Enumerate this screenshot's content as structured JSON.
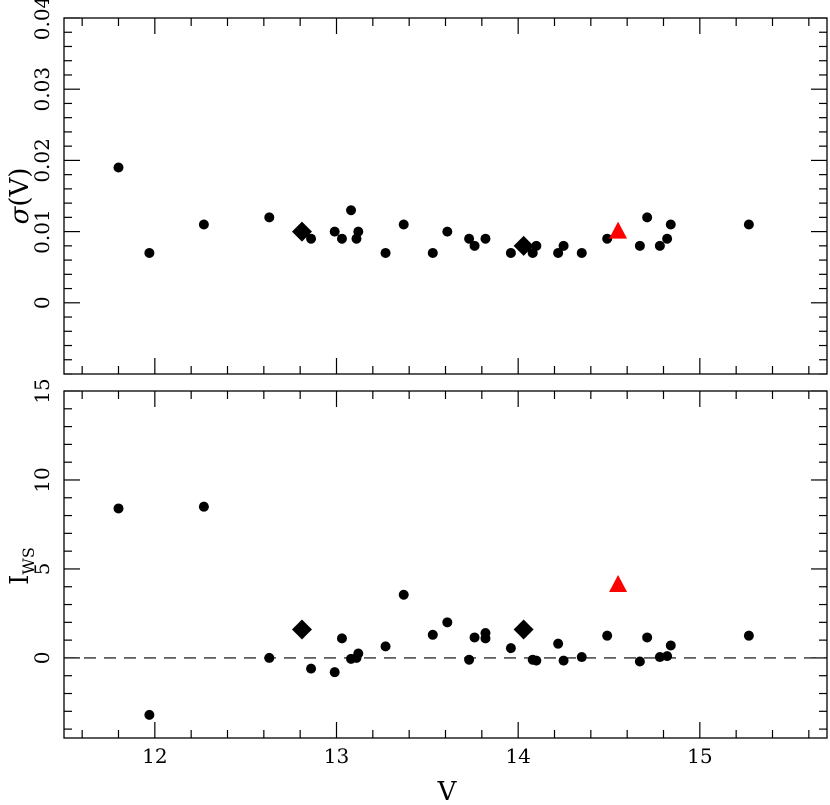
{
  "chart_data": [
    {
      "type": "scatter",
      "panel": "top",
      "xlabel": "",
      "ylabel": "σ(V)",
      "ylabel_symbol": "σ",
      "ylabel_rest": "(V)",
      "xlim": [
        11.5,
        15.7
      ],
      "ylim": [
        -0.01,
        0.04
      ],
      "xticks": [],
      "yticks": [
        0,
        0.01,
        0.02,
        0.03,
        0.04
      ],
      "ytick_labels": [
        "0",
        "0.01",
        "0.02",
        "0.03",
        "0.04"
      ],
      "grid": false,
      "series": [
        {
          "marker": "circle",
          "color": "#000000",
          "x": [
            11.8,
            11.97,
            12.27,
            12.63,
            12.86,
            12.99,
            13.03,
            13.08,
            13.11,
            13.12,
            13.27,
            13.37,
            13.53,
            13.61,
            13.73,
            13.76,
            13.82,
            13.96,
            14.08,
            14.1,
            14.22,
            14.25,
            14.35,
            14.49,
            14.67,
            14.71,
            14.78,
            14.82,
            14.84,
            15.27
          ],
          "y": [
            0.019,
            0.007,
            0.011,
            0.012,
            0.009,
            0.01,
            0.009,
            0.013,
            0.009,
            0.01,
            0.007,
            0.011,
            0.007,
            0.01,
            0.009,
            0.008,
            0.009,
            0.007,
            0.007,
            0.008,
            0.007,
            0.008,
            0.007,
            0.009,
            0.008,
            0.012,
            0.008,
            0.009,
            0.011,
            0.011
          ]
        },
        {
          "marker": "diamond",
          "color": "#000000",
          "x": [
            12.81,
            14.03
          ],
          "y": [
            0.01,
            0.008
          ]
        },
        {
          "marker": "triangle",
          "color": "#ff0000",
          "x": [
            14.55
          ],
          "y": [
            0.01
          ]
        }
      ]
    },
    {
      "type": "scatter",
      "panel": "bottom",
      "xlabel": "V",
      "ylabel": "IWS",
      "ylabel_main": "I",
      "ylabel_sub": "WS",
      "xlim": [
        11.5,
        15.7
      ],
      "ylim": [
        -4.5,
        15
      ],
      "xticks": [
        12,
        13,
        14,
        15
      ],
      "xtick_labels": [
        "12",
        "13",
        "14",
        "15"
      ],
      "yticks": [
        0,
        5,
        10,
        15
      ],
      "ytick_labels": [
        "0",
        "5",
        "10",
        "15"
      ],
      "reference_line": {
        "y": 0,
        "style": "dashed"
      },
      "grid": false,
      "series": [
        {
          "marker": "circle",
          "color": "#000000",
          "x": [
            11.8,
            11.97,
            12.27,
            12.63,
            12.86,
            12.99,
            13.03,
            13.08,
            13.11,
            13.12,
            13.27,
            13.37,
            13.53,
            13.61,
            13.73,
            13.76,
            13.82,
            13.82,
            13.96,
            14.08,
            14.1,
            14.22,
            14.25,
            14.35,
            14.49,
            14.67,
            14.71,
            14.78,
            14.82,
            14.84,
            15.27
          ],
          "y": [
            8.4,
            -3.2,
            8.5,
            0.0,
            -0.6,
            -0.8,
            1.1,
            -0.05,
            0.0,
            0.25,
            0.65,
            3.55,
            1.3,
            2.0,
            -0.1,
            1.15,
            1.1,
            1.4,
            0.55,
            -0.1,
            -0.15,
            0.8,
            -0.15,
            0.05,
            1.25,
            -0.2,
            1.15,
            0.05,
            0.1,
            0.7,
            1.25
          ]
        },
        {
          "marker": "diamond",
          "color": "#000000",
          "x": [
            12.81,
            14.03
          ],
          "y": [
            1.6,
            1.6
          ]
        },
        {
          "marker": "triangle",
          "color": "#ff0000",
          "x": [
            14.55
          ],
          "y": [
            4.1
          ]
        }
      ]
    }
  ]
}
